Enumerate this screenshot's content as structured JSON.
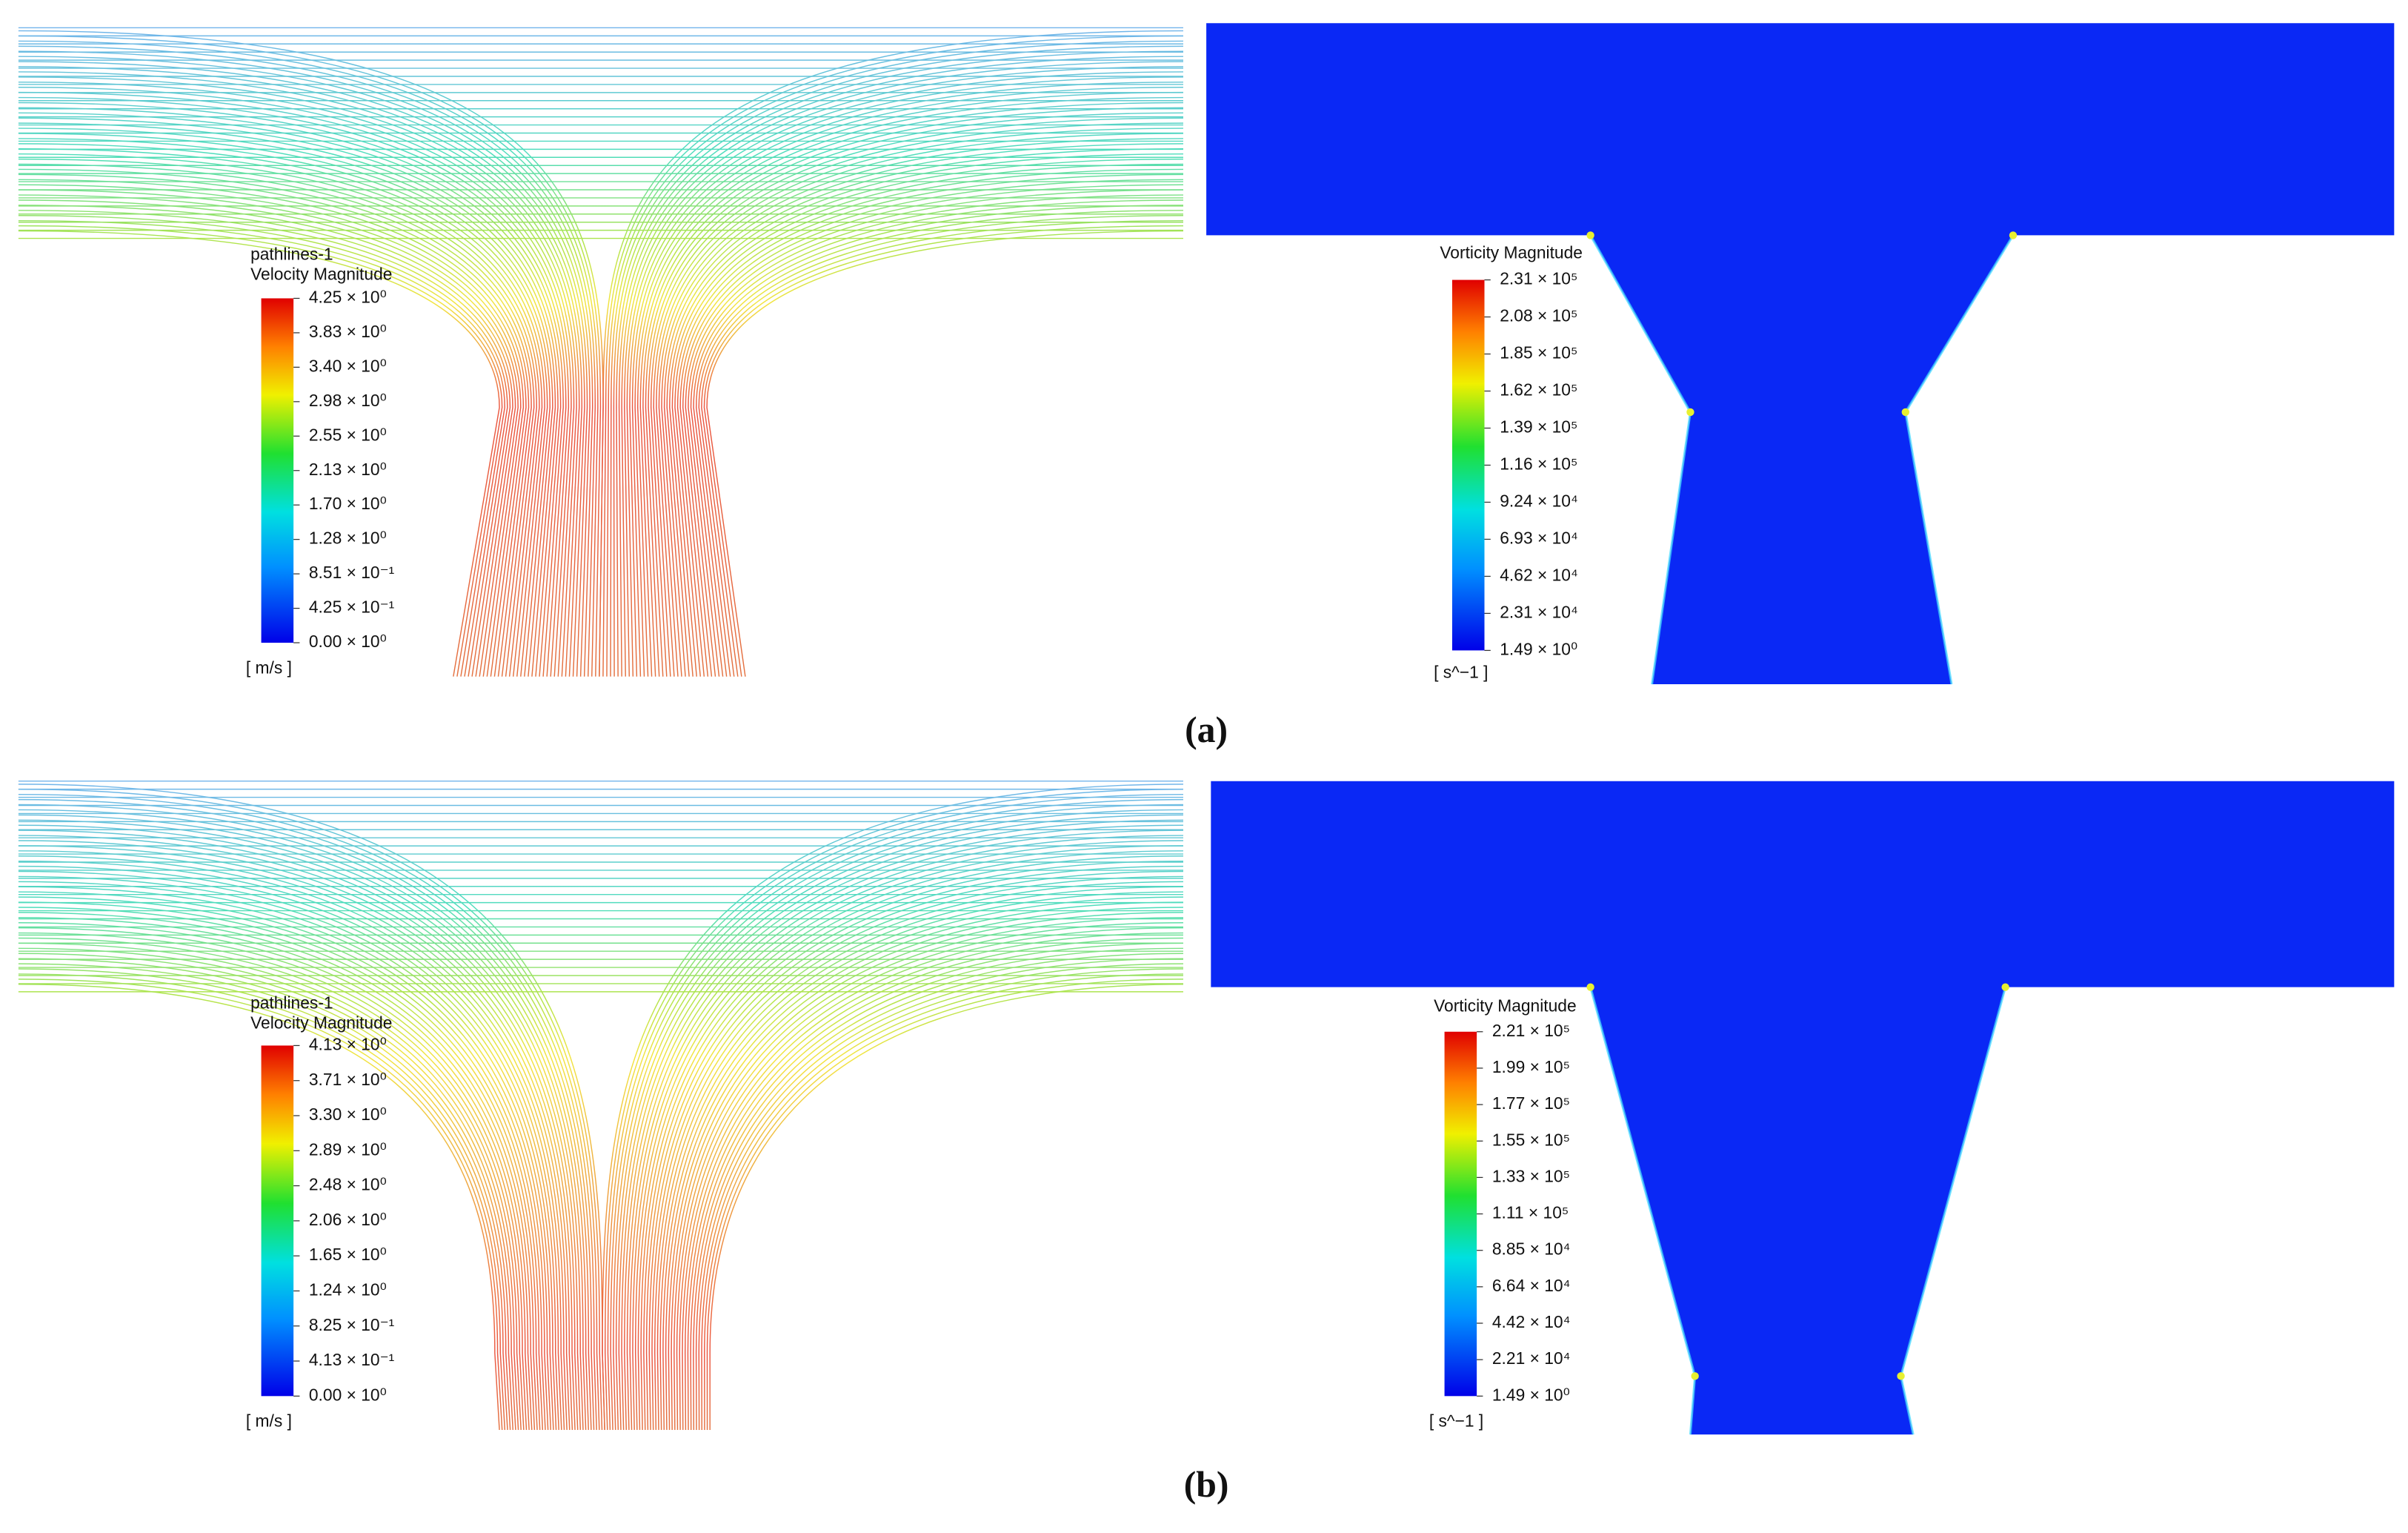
{
  "panels": [
    {
      "label": "(a)",
      "pathlines": {
        "title": "pathlines-1",
        "quantity": "Velocity Magnitude",
        "levels": [
          "4.25 × 10⁰",
          "3.83 × 10⁰",
          "3.40 × 10⁰",
          "2.98 × 10⁰",
          "2.55 × 10⁰",
          "2.13 × 10⁰",
          "1.70 × 10⁰",
          "1.28 × 10⁰",
          "8.51 × 10⁻¹",
          "4.25 × 10⁻¹",
          "0.00 × 10⁰"
        ],
        "unit": "[ m/s ]"
      },
      "vorticity": {
        "quantity": "Vorticity Magnitude",
        "levels": [
          "2.31 × 10⁵",
          "2.08 × 10⁵",
          "1.85 × 10⁵",
          "1.62 × 10⁵",
          "1.39 × 10⁵",
          "1.16 × 10⁵",
          "9.24 × 10⁴",
          "6.93 × 10⁴",
          "4.62 × 10⁴",
          "2.31 × 10⁴",
          "1.49 × 10⁰"
        ],
        "unit": "[ s^−1 ]"
      }
    },
    {
      "label": "(b)",
      "pathlines": {
        "title": "pathlines-1",
        "quantity": "Velocity Magnitude",
        "levels": [
          "4.13 × 10⁰",
          "3.71 × 10⁰",
          "3.30 × 10⁰",
          "2.89 × 10⁰",
          "2.48 × 10⁰",
          "2.06 × 10⁰",
          "1.65 × 10⁰",
          "1.24 × 10⁰",
          "8.25 × 10⁻¹",
          "4.13 × 10⁻¹",
          "0.00 × 10⁰"
        ],
        "unit": "[ m/s ]"
      },
      "vorticity": {
        "quantity": "Vorticity Magnitude",
        "levels": [
          "2.21 × 10⁵",
          "1.99 × 10⁵",
          "1.77 × 10⁵",
          "1.55 × 10⁵",
          "1.33 × 10⁵",
          "1.11 × 10⁵",
          "8.85 × 10⁴",
          "6.64 × 10⁴",
          "4.42 × 10⁴",
          "2.21 × 10⁴",
          "1.49 × 10⁰"
        ],
        "unit": "[ s^−1 ]"
      }
    }
  ]
}
